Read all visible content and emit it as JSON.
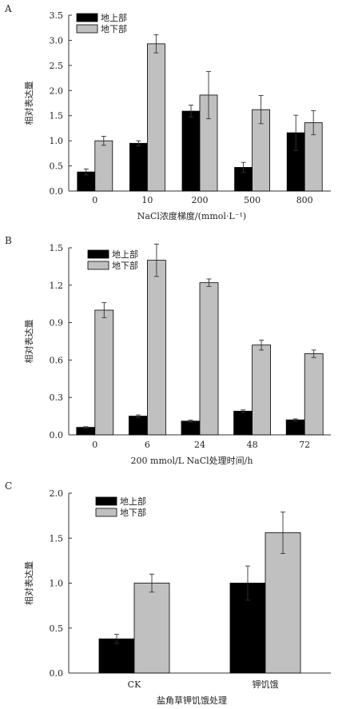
{
  "colors": {
    "above": "#000000",
    "below": "#c0c0c0",
    "axis": "#333333"
  },
  "chart_data": [
    {
      "type": "bar",
      "panel": "A",
      "categories": [
        "0",
        "10",
        "200",
        "500",
        "800"
      ],
      "series": [
        {
          "name": "地上部",
          "values": [
            0.38,
            0.95,
            1.59,
            0.47,
            1.16
          ],
          "err": [
            0.06,
            0.05,
            0.12,
            0.1,
            0.35
          ]
        },
        {
          "name": "地下部",
          "values": [
            1.0,
            2.93,
            1.91,
            1.62,
            1.36
          ],
          "err": [
            0.09,
            0.18,
            0.47,
            0.28,
            0.24
          ]
        }
      ],
      "xlabel": "NaCl浓度梯度/(mmol·L⁻¹)",
      "ylabel": "相对表达量",
      "ylim": [
        0,
        3.5
      ],
      "yticks": [
        "0.0",
        "0.5",
        "1.0",
        "1.5",
        "2.0",
        "2.5",
        "3.0",
        "3.5"
      ],
      "legend": "top-left"
    },
    {
      "type": "bar",
      "panel": "B",
      "categories": [
        "0",
        "6",
        "24",
        "48",
        "72"
      ],
      "series": [
        {
          "name": "地上部",
          "values": [
            0.06,
            0.15,
            0.11,
            0.19,
            0.12
          ],
          "err": [
            0.005,
            0.01,
            0.008,
            0.01,
            0.008
          ]
        },
        {
          "name": "地下部",
          "values": [
            1.0,
            1.4,
            1.22,
            0.72,
            0.65
          ],
          "err": [
            0.06,
            0.13,
            0.03,
            0.04,
            0.03
          ]
        }
      ],
      "xlabel": "200 mmol/L NaCl处理时间/h",
      "ylabel": "相对表达量",
      "ylim": [
        0,
        1.5
      ],
      "yticks": [
        "0.0",
        "0.3",
        "0.6",
        "0.9",
        "1.2",
        "1.5"
      ],
      "legend": "top-left"
    },
    {
      "type": "bar",
      "panel": "C",
      "categories": [
        "CK",
        "钾饥饿"
      ],
      "series": [
        {
          "name": "地上部",
          "values": [
            0.38,
            1.0
          ],
          "err": [
            0.05,
            0.19
          ]
        },
        {
          "name": "地下部",
          "values": [
            1.0,
            1.56
          ],
          "err": [
            0.1,
            0.23
          ]
        }
      ],
      "xlabel": "盐角草钾饥饿处理",
      "ylabel": "相对表达量",
      "ylim": [
        0,
        2.0
      ],
      "yticks": [
        "0.0",
        "0.5",
        "1.0",
        "1.5",
        "2.0"
      ],
      "legend": "top-left"
    }
  ]
}
